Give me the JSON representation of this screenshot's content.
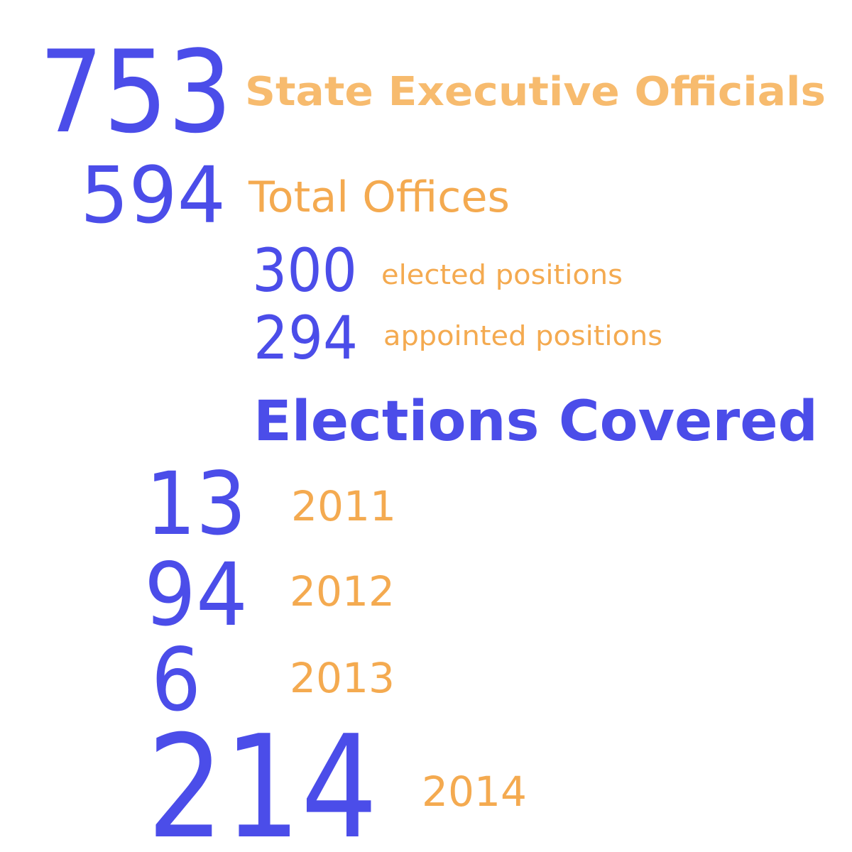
{
  "officials": {
    "number": 753,
    "label": "State Executive Officials"
  },
  "offices": {
    "number": 594,
    "label": "Total Offices"
  },
  "breakdown": [
    {
      "number": 300,
      "label": "elected positions"
    },
    {
      "number": 294,
      "label": "appointed positions"
    }
  ],
  "elections": {
    "title": "Elections Covered",
    "rows": [
      {
        "number": 13,
        "year": 2011
      },
      {
        "number": 94,
        "year": 2012
      },
      {
        "number": 6,
        "year": 2013
      },
      {
        "number": 214,
        "year": 2014
      }
    ]
  }
}
